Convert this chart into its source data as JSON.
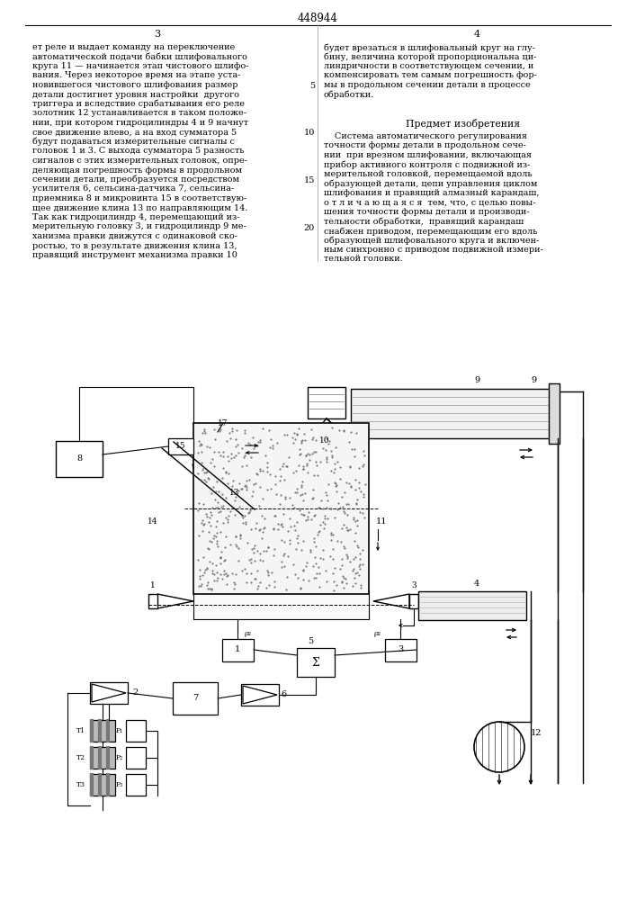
{
  "bg_color": "#ffffff",
  "text_color": "#000000",
  "title": "448944",
  "page_left": "3",
  "page_right": "4",
  "left_col_lines": [
    "ет реле и выдает команду на переключение",
    "автоматической подачи бабки шлифовального",
    "круга 11 — начинается этап чистового шлифо-",
    "вания. Через некоторое время на этапе уста-",
    "новившегося чистового шлифования размер",
    "детали достигнет уровня настройки  другого",
    "триггера и вследствие срабатывания его реле",
    "золотник 12 устанавливается в таком положе-",
    "нии, при котором гидроцилиндры 4 и 9 начнут",
    "свое движение влево, а на вход сумматора 5",
    "будут подаваться измерительные сигналы с",
    "головок 1 и 3. С выхода сумматора 5 разность",
    "сигналов с этих измерительных головок, опре-",
    "деляющая погрешность формы в продольном",
    "сечении детали, преобразуется посредством",
    "усилителя 6, сельсина-датчика 7, сельсина-",
    "приемника 8 и микровинта 15 в соответствую-",
    "щее движение клина 13 по направляющим 14.",
    "Так как гидроцилиндр 4, перемещающий из-",
    "мерительную головку 3, и гидроцилиндр 9 ме-",
    "ханизма правки движутся с одинаковой ско-",
    "ростью, то в результате движения клина 13,",
    "правящий инструмент механизма правки 10"
  ],
  "right_top_lines": [
    "будет врезаться в шлифовальный круг на глу-",
    "бину, величина которой пропорциональна ци-",
    "линдричности в соответствующем сечении, и",
    "компенсировать тем самым погрешность фор-",
    "мы в продольном сечении детали в процессе",
    "обработки."
  ],
  "section_title": "Предмет изобретения",
  "right_bottom_lines": [
    "    Система автоматического регулирования",
    "точности формы детали в продольном сече-",
    "нии  при врезном шлифовании, включающая",
    "прибор активного контроля с подвижной из-",
    "мерительной головкой, перемещаемой вдоль",
    "образующей детали, цепи управления циклом",
    "шлифования и правящий алмазный карандаш,",
    "о т л и ч а ю щ а я с я  тем, что, с целью повы-",
    "шения точности формы детали и производи-",
    "тельности обработки,  правящий карандаш",
    "снабжен приводом, перемещающим его вдоль",
    "образующей шлифовального круга и включен-",
    "ным синхронно с приводом подвижной измери-",
    "тельной головки."
  ]
}
